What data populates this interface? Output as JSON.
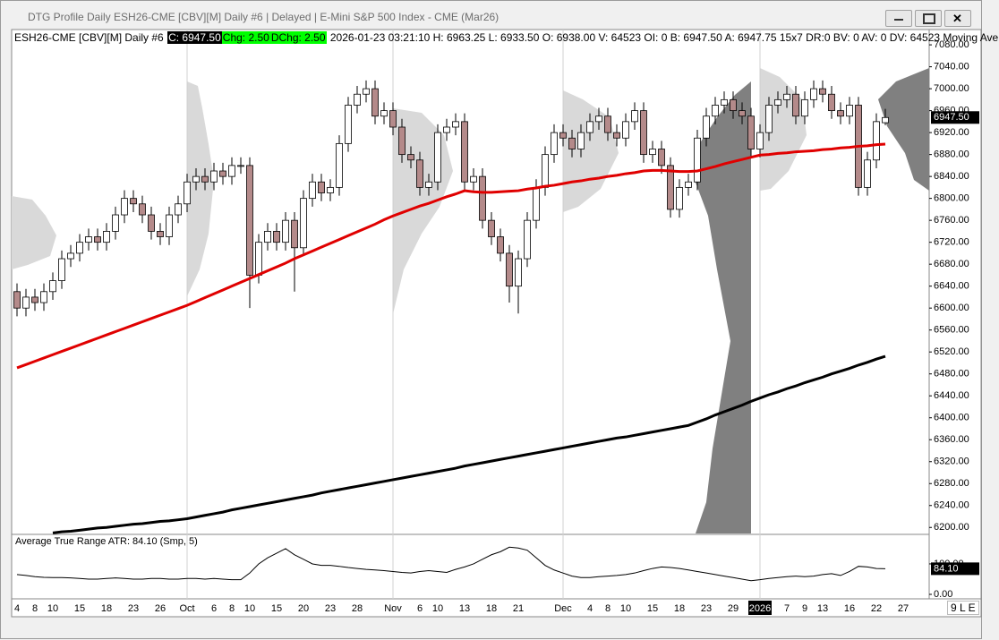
{
  "window": {
    "title": "DTG Profile Daily ESH26-CME [CBV][M]  Daily #6 | Delayed | E-Mini S&P 500 Index - CME (Mar26)"
  },
  "info_bar": {
    "symbol": "ESH26-CME [CBV][M]  Daily #6",
    "close": "C: 6947.50",
    "change": "Chg: 2.50",
    "daily_change": "DChg: 2.50",
    "details": "2026-01-23 03:21:10 H: 6963.25 L: 6933.50 O: 6938.00 V: 64523 OI: 0 B: 6947.50 A: 6947.75 15x7 DR:0 BV: 0 AV: 0 DV: 64523 Moving Ave"
  },
  "corner_label": "9 L E",
  "chart_data": [
    {
      "type": "candlestick",
      "up_color": "#ffffff",
      "down_color": "#b48a8a",
      "categories": [
        "4",
        null,
        "8",
        null,
        "10",
        null,
        null,
        "15",
        null,
        null,
        "18",
        null,
        null,
        "23",
        null,
        null,
        "26",
        null,
        null,
        "Oct",
        null,
        null,
        "6",
        null,
        "8",
        null,
        "10",
        null,
        null,
        "15",
        null,
        null,
        "20",
        null,
        null,
        "23",
        null,
        null,
        "28",
        null,
        null,
        null,
        "Nov",
        null,
        null,
        "6",
        null,
        "10",
        null,
        null,
        "13",
        null,
        null,
        "18",
        null,
        null,
        "21",
        null,
        null,
        null,
        null,
        "Dec",
        null,
        null,
        "4",
        null,
        "8",
        null,
        "10",
        null,
        null,
        "15",
        null,
        null,
        "18",
        null,
        null,
        "23",
        null,
        null,
        "29",
        null,
        null,
        "2026",
        null,
        null,
        "7",
        null,
        "9",
        null,
        "13",
        null,
        null,
        "16",
        null,
        null,
        "22",
        null,
        null,
        "27",
        null,
        null
      ],
      "candles": {
        "open": [
          6630,
          6600,
          6620,
          6610,
          6630,
          6650,
          6690,
          6700,
          6720,
          6730,
          6720,
          6740,
          6770,
          6800,
          6790,
          6770,
          6740,
          6730,
          6770,
          6790,
          6830,
          6840,
          6830,
          6850,
          6840,
          6860,
          6860,
          6660,
          6720,
          6740,
          6720,
          6760,
          6710,
          6800,
          6830,
          6810,
          6820,
          6900,
          6970,
          6990,
          7000,
          6950,
          6960,
          6930,
          6880,
          6870,
          6820,
          6830,
          6920,
          6930,
          6940,
          6830,
          6840,
          6760,
          6730,
          6700,
          6640,
          6690,
          6760,
          6820,
          6880,
          6920,
          6910,
          6890,
          6920,
          6940,
          6950,
          6920,
          6910,
          6940,
          6960,
          6880,
          6890,
          6860,
          6780,
          6820,
          6830,
          6910,
          6950,
          6970,
          6980,
          6960,
          6950,
          6890,
          6920,
          6970,
          6980,
          6990,
          6950,
          6980,
          7000,
          6990,
          6960,
          6950,
          6970,
          6820,
          6870,
          6938,
          null,
          null,
          null,
          null
        ],
        "high": [
          6645,
          6635,
          6635,
          6645,
          6665,
          6705,
          6715,
          6735,
          6745,
          6745,
          6755,
          6785,
          6815,
          6815,
          6805,
          6785,
          6755,
          6785,
          6805,
          6845,
          6855,
          6855,
          6865,
          6865,
          6875,
          6875,
          6875,
          6735,
          6755,
          6755,
          6775,
          6775,
          6815,
          6845,
          6845,
          6835,
          6915,
          6985,
          7005,
          7015,
          7015,
          6975,
          6975,
          6945,
          6895,
          6885,
          6845,
          6935,
          6945,
          6955,
          6955,
          6855,
          6855,
          6775,
          6745,
          6715,
          6705,
          6775,
          6835,
          6895,
          6935,
          6935,
          6925,
          6935,
          6955,
          6965,
          6965,
          6935,
          6955,
          6975,
          6975,
          6905,
          6905,
          6875,
          6835,
          6845,
          6925,
          6965,
          6985,
          6995,
          6995,
          6975,
          6965,
          6935,
          6985,
          6995,
          7005,
          7005,
          6995,
          7015,
          7015,
          7005,
          6975,
          6985,
          6985,
          6885,
          6955,
          6963.25,
          null,
          null,
          null,
          null
        ],
        "low": [
          6585,
          6585,
          6595,
          6595,
          6615,
          6635,
          6675,
          6685,
          6705,
          6705,
          6705,
          6725,
          6755,
          6775,
          6755,
          6725,
          6715,
          6715,
          6755,
          6775,
          6815,
          6815,
          6815,
          6825,
          6825,
          6845,
          6600,
          6645,
          6705,
          6705,
          6705,
          6630,
          6695,
          6785,
          6795,
          6795,
          6805,
          6885,
          6955,
          6975,
          6935,
          6935,
          6915,
          6865,
          6855,
          6805,
          6805,
          6815,
          6905,
          6915,
          6815,
          6815,
          6745,
          6715,
          6685,
          6610,
          6590,
          6675,
          6745,
          6805,
          6865,
          6895,
          6875,
          6875,
          6905,
          6925,
          6905,
          6895,
          6895,
          6925,
          6865,
          6865,
          6845,
          6765,
          6765,
          6805,
          6815,
          6895,
          6935,
          6955,
          6945,
          6935,
          6875,
          6875,
          6905,
          6955,
          6965,
          6935,
          6935,
          6965,
          6975,
          6945,
          6935,
          6935,
          6805,
          6805,
          6855,
          6933.5,
          null,
          null,
          null,
          null
        ],
        "close": [
          6600,
          6620,
          6610,
          6630,
          6650,
          6690,
          6700,
          6720,
          6730,
          6720,
          6740,
          6770,
          6800,
          6790,
          6770,
          6740,
          6730,
          6770,
          6790,
          6830,
          6840,
          6830,
          6850,
          6840,
          6860,
          6860,
          6660,
          6720,
          6740,
          6720,
          6760,
          6710,
          6800,
          6830,
          6810,
          6820,
          6900,
          6970,
          6990,
          7000,
          6950,
          6960,
          6930,
          6880,
          6870,
          6820,
          6830,
          6920,
          6930,
          6940,
          6830,
          6840,
          6760,
          6730,
          6700,
          6640,
          6690,
          6760,
          6820,
          6880,
          6920,
          6910,
          6890,
          6920,
          6940,
          6950,
          6920,
          6910,
          6940,
          6960,
          6880,
          6890,
          6860,
          6780,
          6820,
          6830,
          6910,
          6950,
          6970,
          6980,
          6960,
          6950,
          6890,
          6920,
          6970,
          6980,
          6990,
          6950,
          6980,
          7000,
          6990,
          6960,
          6950,
          6970,
          6820,
          6870,
          6940,
          6947.5,
          null,
          null,
          null,
          null
        ]
      },
      "series": [
        {
          "color": "#e00000",
          "values": [
            6491,
            6497,
            6503,
            6509,
            6515,
            6521,
            6527,
            6533,
            6539,
            6545,
            6551,
            6557,
            6563,
            6569,
            6575,
            6581,
            6587,
            6593,
            6599,
            6605,
            6612,
            6619,
            6626,
            6633,
            6640,
            6647,
            6654,
            6661,
            6668,
            6675,
            6682,
            6690,
            6697,
            6704,
            6711,
            6718,
            6725,
            6732,
            6739,
            6746,
            6753,
            6761,
            6768,
            6774,
            6780,
            6786,
            6791,
            6797,
            6803,
            6808,
            6814,
            6812,
            6811,
            6811,
            6812,
            6813,
            6814,
            6817,
            6819,
            6822,
            6824,
            6827,
            6830,
            6832,
            6835,
            6837,
            6840,
            6842,
            6845,
            6847,
            6850,
            6851,
            6851,
            6850,
            6849,
            6849,
            6850,
            6854,
            6858,
            6863,
            6867,
            6871,
            6875,
            6879,
            6880,
            6882,
            6883,
            6885,
            6886,
            6887,
            6889,
            6890,
            6892,
            6893,
            6895,
            6896,
            6898,
            6899,
            null,
            null,
            null,
            null
          ]
        },
        {
          "color": "#000000",
          "values": [
            null,
            null,
            null,
            null,
            6190,
            6192,
            6193,
            6195,
            6197,
            6199,
            6200,
            6202,
            6204,
            6206,
            6207,
            6209,
            6211,
            6212,
            6214,
            6216,
            6219,
            6222,
            6225,
            6228,
            6232,
            6235,
            6238,
            6241,
            6244,
            6247,
            6250,
            6253,
            6256,
            6259,
            6263,
            6266,
            6269,
            6272,
            6275,
            6278,
            6281,
            6284,
            6287,
            6290,
            6293,
            6296,
            6299,
            6302,
            6305,
            6308,
            6312,
            6315,
            6318,
            6321,
            6324,
            6327,
            6330,
            6333,
            6336,
            6339,
            6342,
            6345,
            6348,
            6351,
            6354,
            6357,
            6360,
            6363,
            6365,
            6368,
            6371,
            6374,
            6377,
            6380,
            6383,
            6386,
            6392,
            6398,
            6405,
            6411,
            6417,
            6423,
            6430,
            6436,
            6442,
            6447,
            6453,
            6458,
            6464,
            6469,
            6474,
            6480,
            6485,
            6490,
            6496,
            6501,
            6507,
            6512,
            null,
            null,
            null,
            null
          ]
        }
      ],
      "last_price": {
        "value": 6947.5,
        "label": "6947.50"
      },
      "ylim": [
        6189,
        7103
      ],
      "yticks": [
        {
          "value": 7080,
          "label": "7080.00"
        },
        {
          "value": 7040,
          "label": "7040.00"
        },
        {
          "value": 7000,
          "label": "7000.00"
        },
        {
          "value": 6960,
          "label": "6960.00"
        },
        {
          "value": 6920,
          "label": "6920.00"
        },
        {
          "value": 6880,
          "label": "6880.00"
        },
        {
          "value": 6840,
          "label": "6840.00"
        },
        {
          "value": 6800,
          "label": "6800.00"
        },
        {
          "value": 6760,
          "label": "6760.00"
        },
        {
          "value": 6720,
          "label": "6720.00"
        },
        {
          "value": 6680,
          "label": "6680.00"
        },
        {
          "value": 6640,
          "label": "6640.00"
        },
        {
          "value": 6600,
          "label": "6600.00"
        },
        {
          "value": 6560,
          "label": "6560.00"
        },
        {
          "value": 6520,
          "label": "6520.00"
        },
        {
          "value": 6480,
          "label": "6480.00"
        },
        {
          "value": 6440,
          "label": "6440.00"
        },
        {
          "value": 6400,
          "label": "6400.00"
        },
        {
          "value": 6360,
          "label": "6360.00"
        },
        {
          "value": 6320,
          "label": "6320.00"
        },
        {
          "value": 6280,
          "label": "6280.00"
        },
        {
          "value": 6240,
          "label": "6240.00"
        },
        {
          "value": 6200,
          "label": "6200.00"
        }
      ]
    },
    {
      "type": "line",
      "title": "Average True Range  ATR: 84.10  (Smp, 5)",
      "color": "#000000",
      "values": [
        65,
        62,
        58,
        56,
        55,
        55,
        54,
        52,
        50,
        50,
        52,
        54,
        52,
        50,
        50,
        52,
        52,
        50,
        50,
        52,
        52,
        50,
        52,
        50,
        48,
        48,
        70,
        100,
        120,
        135,
        150,
        130,
        115,
        100,
        95,
        95,
        92,
        88,
        85,
        82,
        80,
        78,
        75,
        72,
        70,
        75,
        78,
        75,
        72,
        82,
        90,
        100,
        115,
        130,
        140,
        155,
        152,
        145,
        120,
        95,
        80,
        70,
        60,
        55,
        55,
        58,
        60,
        62,
        65,
        70,
        78,
        85,
        90,
        88,
        85,
        80,
        75,
        70,
        65,
        60,
        55,
        50,
        45,
        48,
        52,
        55,
        58,
        60,
        58,
        60,
        65,
        68,
        62,
        75,
        92,
        90,
        85,
        84.1,
        null,
        null,
        null,
        null
      ],
      "last_value": {
        "value": 84.1,
        "label": "84.10"
      },
      "ylim": [
        0,
        191
      ],
      "yticks": [
        {
          "value": 100,
          "label": "100.00"
        },
        {
          "value": 0,
          "label": "0.00"
        }
      ]
    }
  ]
}
